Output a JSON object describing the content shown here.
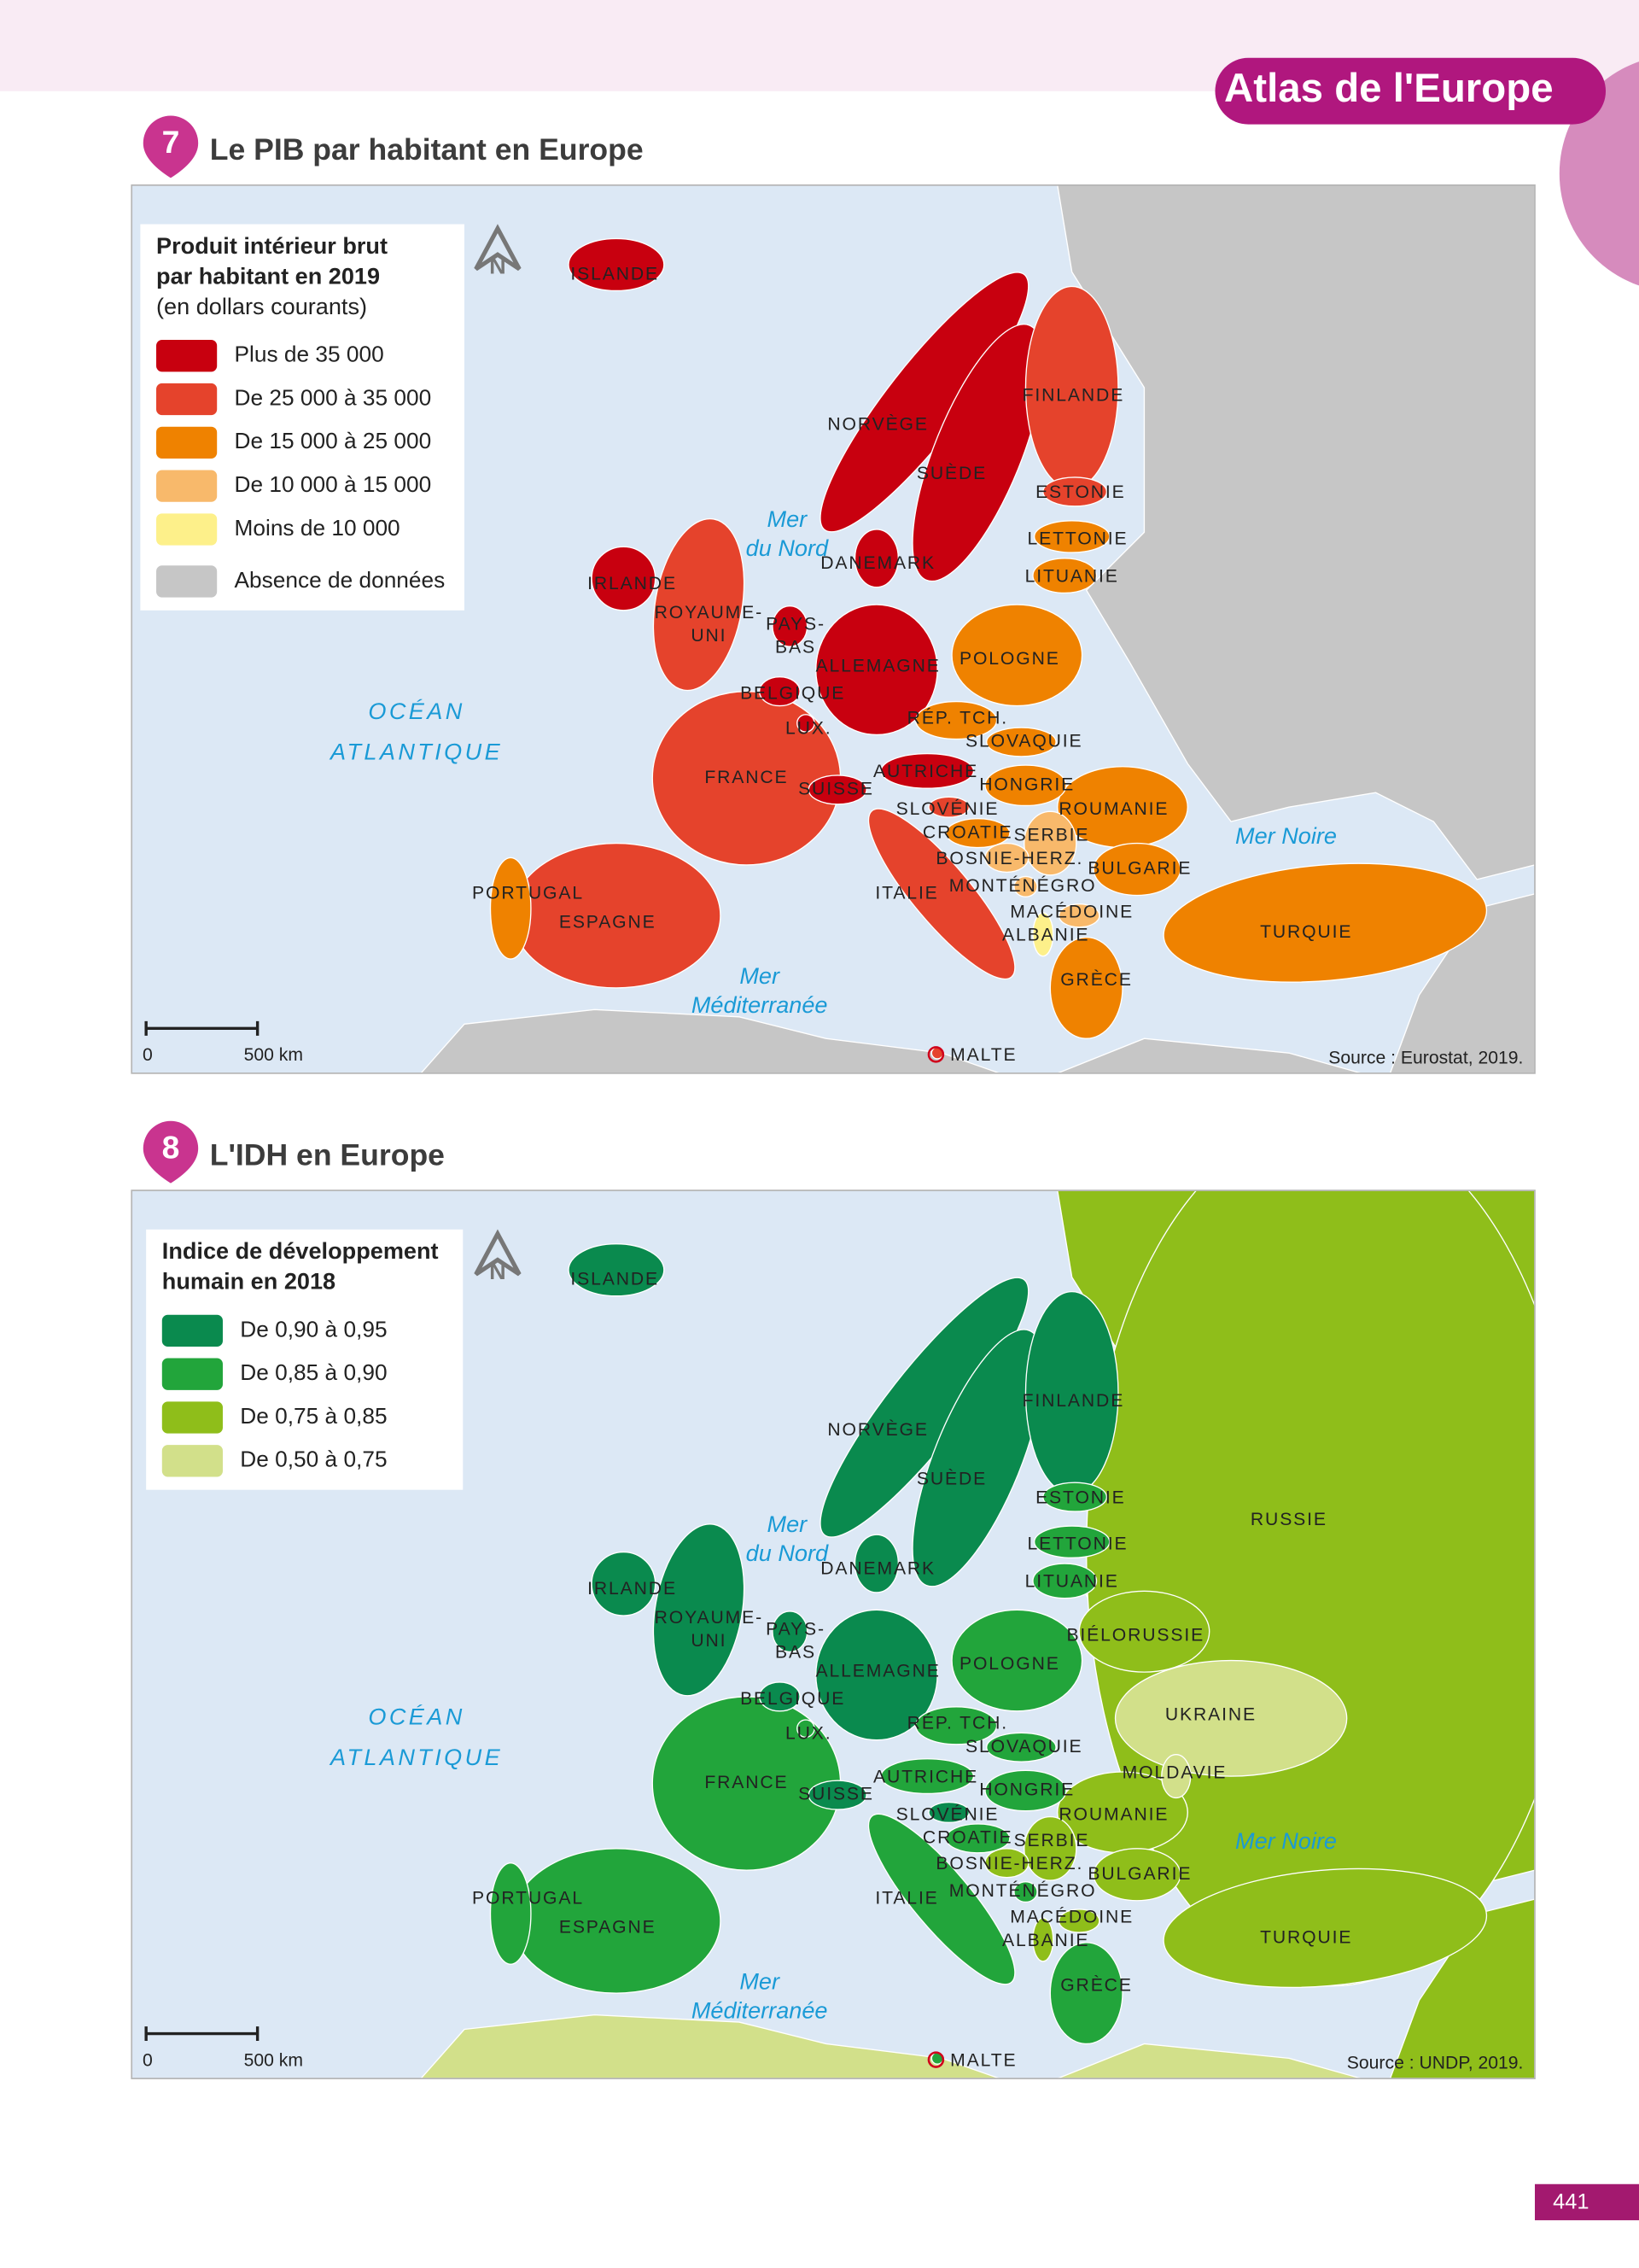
{
  "header": {
    "title": "Atlas de l'Europe"
  },
  "maps": [
    {
      "number": "7",
      "title": "Le PIB par habitant en Europe",
      "compass": "N",
      "legend": {
        "title": [
          "Produit intérieur brut",
          "par habitant en 2019"
        ],
        "subtitle": "(en dollars courants)",
        "items": [
          {
            "label": "Plus de 35 000",
            "color": "#c8000f"
          },
          {
            "label": "De 25 000 à 35 000",
            "color": "#e5432c"
          },
          {
            "label": "De 15 000 à 25 000",
            "color": "#ef8200"
          },
          {
            "label": "De 10 000 à 15 000",
            "color": "#f8b96b"
          },
          {
            "label": "Moins de 10 000",
            "color": "#fdf08a"
          },
          {
            "label": "Absence de données",
            "color": "#c6c6c6"
          }
        ]
      },
      "countries": [
        {
          "name": [
            "ISLANDE"
          ],
          "class": 0
        },
        {
          "name": [
            "NORVÈGE"
          ],
          "class": 0
        },
        {
          "name": [
            "SUÈDE"
          ],
          "class": 0
        },
        {
          "name": [
            "FINLANDE"
          ],
          "class": 1
        },
        {
          "name": [
            "ESTONIE"
          ],
          "class": 1
        },
        {
          "name": [
            "LETTONIE"
          ],
          "class": 2
        },
        {
          "name": [
            "LITUANIE"
          ],
          "class": 2
        },
        {
          "name": [
            "DANEMARK"
          ],
          "class": 0
        },
        {
          "name": [
            "IRLANDE"
          ],
          "class": 0
        },
        {
          "name": [
            "ROYAUME-",
            "UNI"
          ],
          "class": 1
        },
        {
          "name": [
            "PAYS-",
            "BAS"
          ],
          "class": 0
        },
        {
          "name": [
            "ALLEMAGNE"
          ],
          "class": 0
        },
        {
          "name": [
            "POLOGNE"
          ],
          "class": 2
        },
        {
          "name": [
            "BELGIQUE"
          ],
          "class": 0
        },
        {
          "name": [
            "LUX."
          ],
          "class": 0
        },
        {
          "name": [
            "RÉP. TCH."
          ],
          "class": 2
        },
        {
          "name": [
            "SLOVAQUIE"
          ],
          "class": 2
        },
        {
          "name": [
            "FRANCE"
          ],
          "class": 1
        },
        {
          "name": [
            "AUTRICHE"
          ],
          "class": 0
        },
        {
          "name": [
            "SUISSE"
          ],
          "class": 0
        },
        {
          "name": [
            "HONGRIE"
          ],
          "class": 2
        },
        {
          "name": [
            "SLOVÉNIE"
          ],
          "class": 1
        },
        {
          "name": [
            "ROUMANIE"
          ],
          "class": 2
        },
        {
          "name": [
            "CROATIE"
          ],
          "class": 2
        },
        {
          "name": [
            "SERBIE"
          ],
          "class": 3
        },
        {
          "name": [
            "BOSNIE-HERZ."
          ],
          "class": 3
        },
        {
          "name": [
            "BULGARIE"
          ],
          "class": 2
        },
        {
          "name": [
            "PORTUGAL"
          ],
          "class": 2
        },
        {
          "name": [
            "ITALIE"
          ],
          "class": 1
        },
        {
          "name": [
            "MONTÉNÉGRO"
          ],
          "class": 3
        },
        {
          "name": [
            "ESPAGNE"
          ],
          "class": 1
        },
        {
          "name": [
            "MACÉDOINE"
          ],
          "class": 3
        },
        {
          "name": [
            "ALBANIE"
          ],
          "class": 4
        },
        {
          "name": [
            "TURQUIE"
          ],
          "class": 2
        },
        {
          "name": [
            "GRÈCE"
          ],
          "class": 2
        },
        {
          "name": [
            "MALTE"
          ],
          "class": 1
        }
      ],
      "seas": [
        {
          "name": [
            "Mer",
            "du Nord"
          ]
        },
        {
          "name": [
            "OCÉAN",
            "ATLANTIQUE"
          ]
        },
        {
          "name": [
            "Mer",
            "Méditerranée"
          ]
        },
        {
          "name": [
            "Mer Noire"
          ]
        }
      ],
      "scale": {
        "start": "0",
        "end": "500 km"
      },
      "source": "Source : Eurostat, 2019."
    },
    {
      "number": "8",
      "title": "L'IDH en Europe",
      "compass": "N",
      "legend": {
        "title": [
          "Indice de développement",
          "humain en 2018"
        ],
        "items": [
          {
            "label": "De 0,90 à 0,95",
            "color": "#0a8a4e"
          },
          {
            "label": "De 0,85 à 0,90",
            "color": "#22a53b"
          },
          {
            "label": "De 0,75 à 0,85",
            "color": "#8fbe1a"
          },
          {
            "label": "De 0,50 à 0,75",
            "color": "#d2e08a"
          }
        ]
      },
      "countries": [
        {
          "name": [
            "ISLANDE"
          ],
          "class": 0
        },
        {
          "name": [
            "NORVÈGE"
          ],
          "class": 0
        },
        {
          "name": [
            "SUÈDE"
          ],
          "class": 0
        },
        {
          "name": [
            "FINLANDE"
          ],
          "class": 0
        },
        {
          "name": [
            "ESTONIE"
          ],
          "class": 1
        },
        {
          "name": [
            "LETTONIE"
          ],
          "class": 1
        },
        {
          "name": [
            "LITUANIE"
          ],
          "class": 1
        },
        {
          "name": [
            "DANEMARK"
          ],
          "class": 0
        },
        {
          "name": [
            "IRLANDE"
          ],
          "class": 0
        },
        {
          "name": [
            "ROYAUME-",
            "UNI"
          ],
          "class": 0
        },
        {
          "name": [
            "PAYS-",
            "BAS"
          ],
          "class": 0
        },
        {
          "name": [
            "ALLEMAGNE"
          ],
          "class": 0
        },
        {
          "name": [
            "POLOGNE"
          ],
          "class": 1
        },
        {
          "name": [
            "BELGIQUE"
          ],
          "class": 0
        },
        {
          "name": [
            "LUX."
          ],
          "class": 1
        },
        {
          "name": [
            "RÉP. TCH."
          ],
          "class": 1
        },
        {
          "name": [
            "SLOVAQUIE"
          ],
          "class": 1
        },
        {
          "name": [
            "FRANCE"
          ],
          "class": 1
        },
        {
          "name": [
            "AUTRICHE"
          ],
          "class": 1
        },
        {
          "name": [
            "SUISSE"
          ],
          "class": 0
        },
        {
          "name": [
            "HONGRIE"
          ],
          "class": 1
        },
        {
          "name": [
            "SLOVÉNIE"
          ],
          "class": 0
        },
        {
          "name": [
            "ROUMANIE"
          ],
          "class": 2
        },
        {
          "name": [
            "CROATIE"
          ],
          "class": 1
        },
        {
          "name": [
            "SERBIE"
          ],
          "class": 2
        },
        {
          "name": [
            "BOSNIE-HERZ."
          ],
          "class": 2
        },
        {
          "name": [
            "BULGARIE"
          ],
          "class": 2
        },
        {
          "name": [
            "PORTUGAL"
          ],
          "class": 1
        },
        {
          "name": [
            "ITALIE"
          ],
          "class": 1
        },
        {
          "name": [
            "MONTÉNÉGRO"
          ],
          "class": 1
        },
        {
          "name": [
            "ESPAGNE"
          ],
          "class": 1
        },
        {
          "name": [
            "MACÉDOINE"
          ],
          "class": 2
        },
        {
          "name": [
            "ALBANIE"
          ],
          "class": 2
        },
        {
          "name": [
            "TURQUIE"
          ],
          "class": 2
        },
        {
          "name": [
            "GRÈCE"
          ],
          "class": 1
        },
        {
          "name": [
            "MALTE"
          ],
          "class": 1
        },
        {
          "name": [
            "RUSSIE"
          ],
          "class": 2
        },
        {
          "name": [
            "BIÉLORUSSIE"
          ],
          "class": 2
        },
        {
          "name": [
            "UKRAINE"
          ],
          "class": 3
        },
        {
          "name": [
            "MOLDAVIE"
          ],
          "class": 3
        }
      ],
      "seas": [
        {
          "name": [
            "Mer",
            "du Nord"
          ]
        },
        {
          "name": [
            "OCÉAN",
            "ATLANTIQUE"
          ]
        },
        {
          "name": [
            "Mer",
            "Méditerranée"
          ]
        },
        {
          "name": [
            "Mer Noire"
          ]
        }
      ],
      "scale": {
        "start": "0",
        "end": "500 km"
      },
      "source": "Source : UNDP, 2019."
    }
  ],
  "page_number": "441"
}
